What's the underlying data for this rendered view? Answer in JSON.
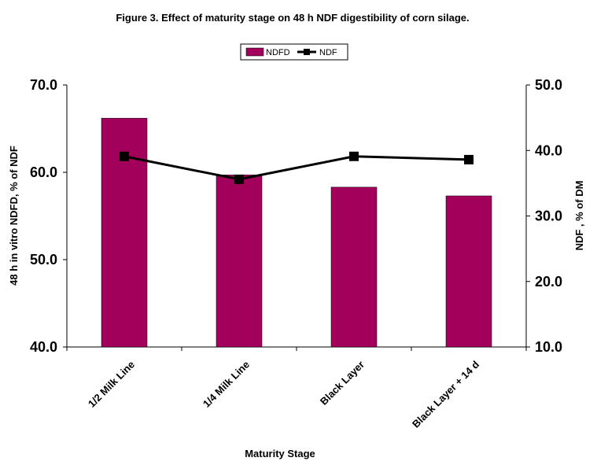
{
  "chart_data": {
    "type": "bar",
    "title": "Figure 3. Effect of maturity stage on 48 h NDF digestibility of corn silage.",
    "xlabel": "Maturity Stage",
    "categories": [
      "1/2 Milk Line",
      "1/4 Milk Line",
      "Black Layer",
      "Black Layer + 14 d"
    ],
    "series": [
      {
        "name": "NDFD",
        "kind": "bar",
        "axis": "left",
        "color": "#a3005c",
        "values": [
          66.2,
          59.7,
          58.3,
          57.3
        ]
      },
      {
        "name": "NDF",
        "kind": "line",
        "axis": "right",
        "color": "#000000",
        "marker": "square",
        "values": [
          39.1,
          35.6,
          39.1,
          38.6
        ]
      }
    ],
    "y_left": {
      "label": "48 h in vitro NDFD, % of NDF",
      "ylim": [
        40,
        70
      ],
      "ticks": [
        "40.0",
        "50.0",
        "60.0",
        "70.0"
      ]
    },
    "y_right": {
      "label": "NDF , % of DM",
      "ylim": [
        10,
        50
      ],
      "ticks": [
        "10.0",
        "20.0",
        "30.0",
        "40.0",
        "50.0"
      ]
    },
    "grid": false,
    "legend_position": "top-center"
  }
}
